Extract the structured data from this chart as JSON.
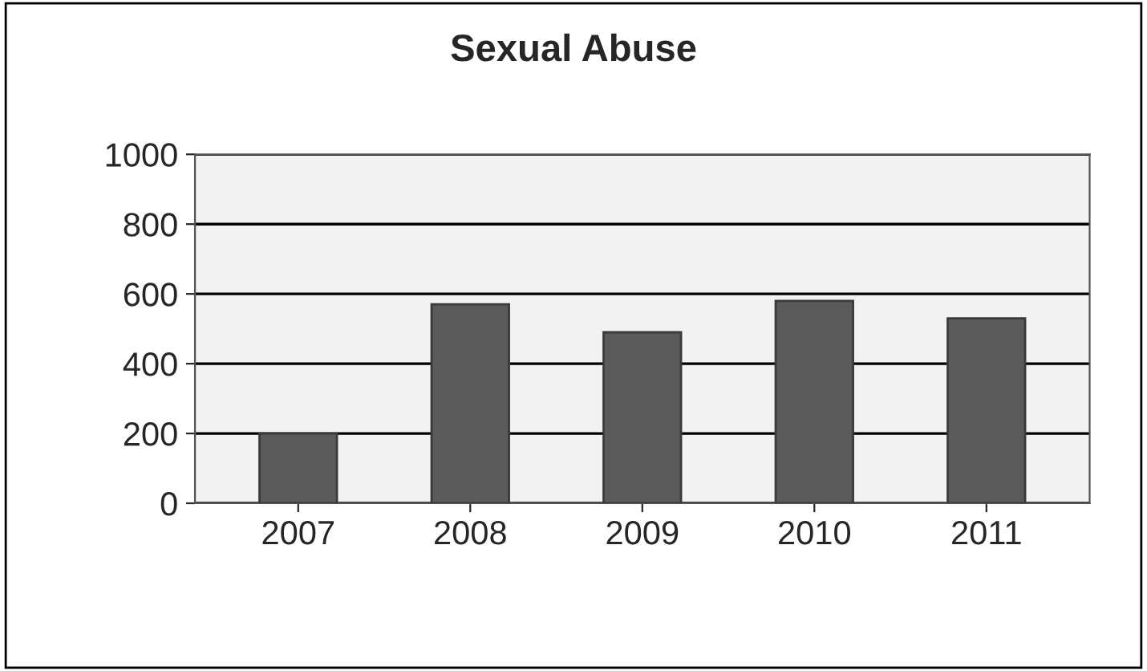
{
  "chart_data": {
    "type": "bar",
    "title": "Sexual Abuse",
    "categories": [
      "2007",
      "2008",
      "2009",
      "2010",
      "2011"
    ],
    "values": [
      200,
      570,
      490,
      580,
      530
    ],
    "color": "#5a5a5a",
    "ylim": [
      0,
      1000
    ],
    "yticks": [
      0,
      200,
      400,
      600,
      800,
      1000
    ],
    "grid": "y"
  }
}
